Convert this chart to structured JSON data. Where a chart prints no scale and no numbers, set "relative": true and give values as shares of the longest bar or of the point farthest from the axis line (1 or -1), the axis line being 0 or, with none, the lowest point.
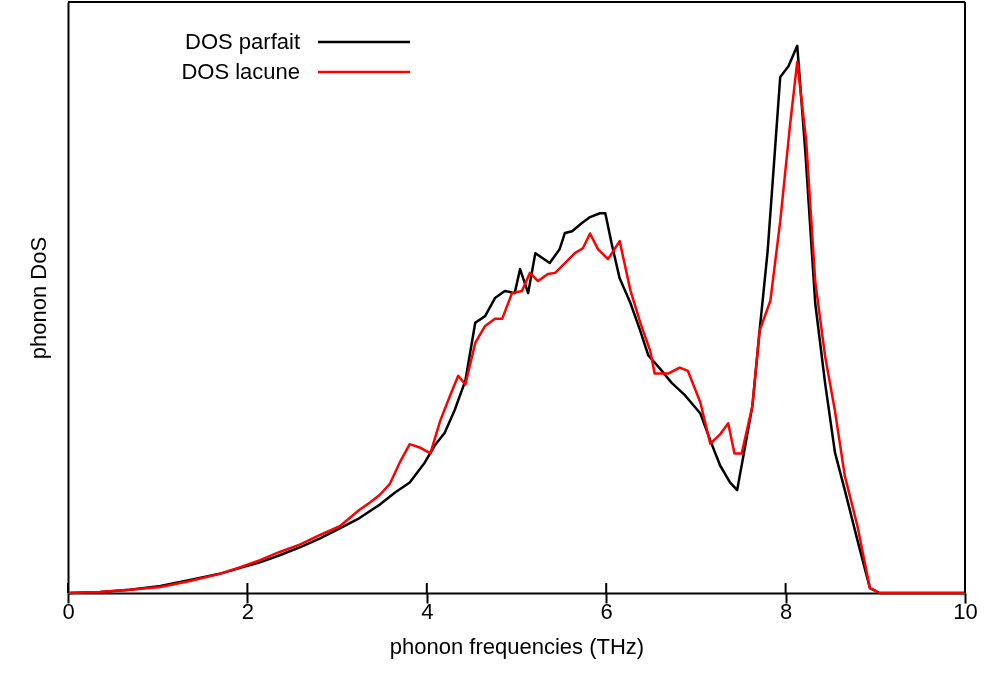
{
  "chart_data": {
    "type": "line",
    "xlabel": "phonon frequencies  (THz)",
    "ylabel": "phonon DoS",
    "relative": true,
    "xlim": [
      0,
      10
    ],
    "xticks": [
      0,
      2,
      4,
      6,
      8,
      10
    ],
    "tick_labels": "x",
    "grid": false,
    "legend": "top left",
    "marker": "none",
    "line_style": "solid",
    "series": [
      {
        "name": "DOS parfait",
        "color": "#000000",
        "x": [
          0,
          0.36,
          0.69,
          1.03,
          1.36,
          1.69,
          1.92,
          2.14,
          2.36,
          2.59,
          2.81,
          3.03,
          3.25,
          3.48,
          3.65,
          3.81,
          3.98,
          4.09,
          4.2,
          4.31,
          4.43,
          4.54,
          4.65,
          4.76,
          4.87,
          4.98,
          5.04,
          5.13,
          5.21,
          5.37,
          5.48,
          5.54,
          5.62,
          5.73,
          5.82,
          5.93,
          5.99,
          6.06,
          6.15,
          6.27,
          6.38,
          6.47,
          6.6,
          6.73,
          6.88,
          7.05,
          7.16,
          7.27,
          7.38,
          7.46,
          7.55,
          7.63,
          7.71,
          7.8,
          7.88,
          7.94,
          8.03,
          8.13,
          8.22,
          8.33,
          8.44,
          8.55,
          8.66,
          8.8,
          8.94,
          9.05,
          10
        ],
        "values": [
          0,
          0.002,
          0.006,
          0.013,
          0.024,
          0.035,
          0.046,
          0.056,
          0.069,
          0.084,
          0.1,
          0.118,
          0.137,
          0.162,
          0.184,
          0.202,
          0.239,
          0.27,
          0.293,
          0.334,
          0.388,
          0.494,
          0.506,
          0.539,
          0.552,
          0.548,
          0.592,
          0.548,
          0.621,
          0.603,
          0.628,
          0.658,
          0.661,
          0.676,
          0.687,
          0.694,
          0.694,
          0.639,
          0.575,
          0.53,
          0.479,
          0.434,
          0.41,
          0.384,
          0.361,
          0.328,
          0.279,
          0.233,
          0.202,
          0.188,
          0.269,
          0.342,
          0.479,
          0.625,
          0.806,
          0.943,
          0.962,
          1.0,
          0.806,
          0.53,
          0.384,
          0.257,
          0.188,
          0.097,
          0.009,
          0,
          0
        ]
      },
      {
        "name": "DOS lacune",
        "color": "#ff0000",
        "x": [
          0,
          0.36,
          0.69,
          1.03,
          1.36,
          1.69,
          1.92,
          2.14,
          2.36,
          2.59,
          2.81,
          3.03,
          3.14,
          3.25,
          3.37,
          3.48,
          3.59,
          3.7,
          3.81,
          3.92,
          4.04,
          4.15,
          4.26,
          4.35,
          4.43,
          4.54,
          4.65,
          4.76,
          4.84,
          4.95,
          5.06,
          5.15,
          5.24,
          5.35,
          5.43,
          5.54,
          5.65,
          5.74,
          5.82,
          5.91,
          6.02,
          6.15,
          6.27,
          6.38,
          6.49,
          6.54,
          6.69,
          6.82,
          6.91,
          7.05,
          7.16,
          7.27,
          7.36,
          7.43,
          7.51,
          7.63,
          7.71,
          7.83,
          7.94,
          8.05,
          8.13,
          8.23,
          8.33,
          8.44,
          8.55,
          8.66,
          8.8,
          8.94,
          9.05,
          10
        ],
        "values": [
          0,
          0.002,
          0.006,
          0.011,
          0.022,
          0.035,
          0.047,
          0.06,
          0.075,
          0.089,
          0.106,
          0.122,
          0.137,
          0.152,
          0.166,
          0.18,
          0.2,
          0.239,
          0.272,
          0.266,
          0.255,
          0.315,
          0.361,
          0.397,
          0.381,
          0.457,
          0.488,
          0.501,
          0.501,
          0.548,
          0.552,
          0.585,
          0.57,
          0.583,
          0.585,
          0.603,
          0.621,
          0.63,
          0.657,
          0.628,
          0.61,
          0.643,
          0.553,
          0.494,
          0.443,
          0.401,
          0.401,
          0.412,
          0.406,
          0.348,
          0.273,
          0.29,
          0.31,
          0.255,
          0.255,
          0.342,
          0.479,
          0.534,
          0.679,
          0.856,
          0.971,
          0.825,
          0.57,
          0.433,
          0.333,
          0.214,
          0.123,
          0.009,
          0,
          0
        ]
      }
    ]
  }
}
